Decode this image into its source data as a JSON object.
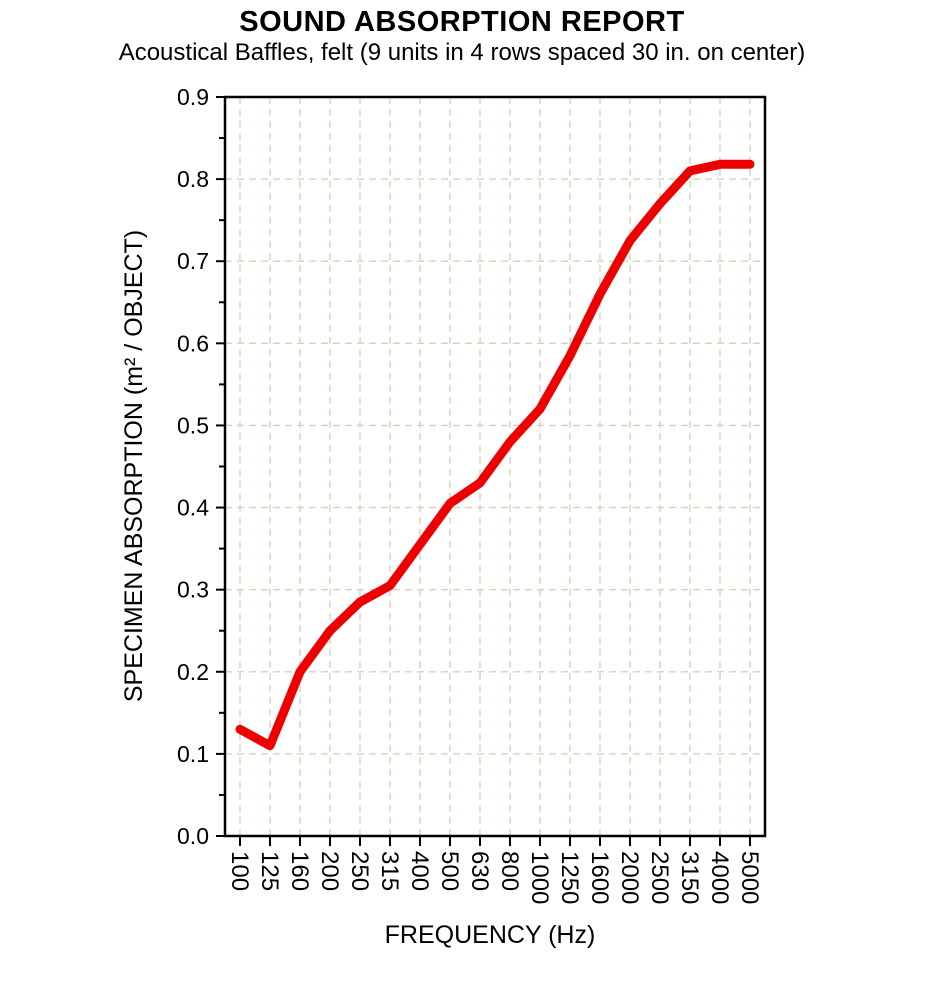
{
  "page": {
    "background": "#ffffff"
  },
  "chart_data": {
    "type": "line",
    "title": "SOUND ABSORPTION REPORT",
    "subtitle": "Acoustical Baffles, felt (9 units in 4 rows spaced 30 in. on center)",
    "xlabel": "FREQUENCY (Hz)",
    "ylabel": "SPECIMEN ABSORPTION (m² / OBJECT)",
    "categories": [
      "100",
      "125",
      "160",
      "200",
      "250",
      "315",
      "400",
      "500",
      "630",
      "800",
      "1000",
      "1250",
      "1600",
      "2000",
      "2500",
      "3150",
      "4000",
      "5000"
    ],
    "series": [
      {
        "name": "specimen-absorption",
        "color": "#ee0000",
        "line_width": 9,
        "values": [
          0.13,
          0.11,
          0.2,
          0.25,
          0.285,
          0.305,
          0.355,
          0.405,
          0.43,
          0.48,
          0.52,
          0.585,
          0.66,
          0.725,
          0.77,
          0.81,
          0.818,
          0.818
        ]
      }
    ],
    "ylim": [
      0.0,
      0.9
    ],
    "ytick_major": 0.1,
    "ytick_minor": 0.05,
    "grid": {
      "show": true,
      "color": "#d8d1ba",
      "dash": "7 5"
    },
    "axis_color": "#000000",
    "legend_position": "none"
  }
}
